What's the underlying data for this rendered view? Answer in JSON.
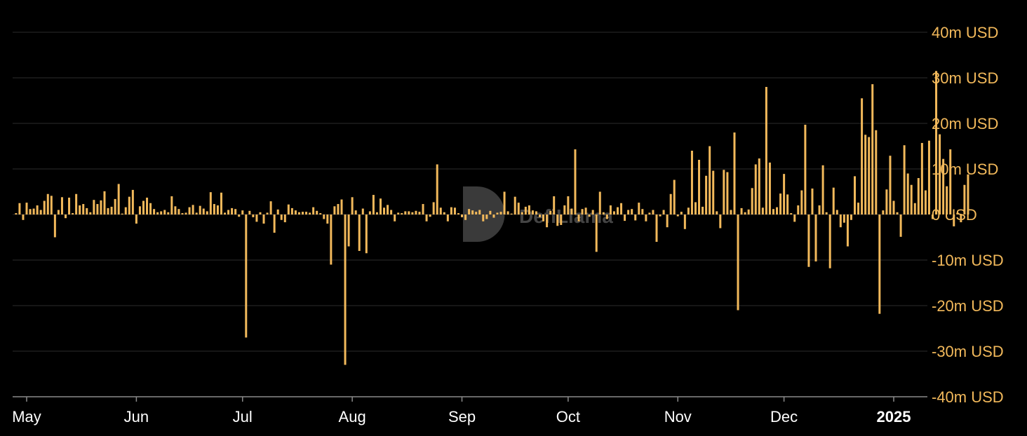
{
  "chart_data": {
    "type": "bar",
    "title": "",
    "xlabel": "",
    "ylabel": "",
    "unit": "USD",
    "ylim": [
      -40,
      40
    ],
    "grid": true,
    "bar_color": "#f2b95b",
    "background": "#000000",
    "watermark": "DefiLlama",
    "y_ticks": [
      "40m USD",
      "30m USD",
      "20m USD",
      "10m USD",
      "0 USD",
      "-10m USD",
      "-20m USD",
      "-30m USD",
      "-40m USD"
    ],
    "x_ticks": [
      {
        "label": "May",
        "date": "2024-05-01"
      },
      {
        "label": "Jun",
        "date": "2024-06-01"
      },
      {
        "label": "Jul",
        "date": "2024-07-01"
      },
      {
        "label": "Aug",
        "date": "2024-08-01"
      },
      {
        "label": "Sep",
        "date": "2024-09-01"
      },
      {
        "label": "Oct",
        "date": "2024-10-01"
      },
      {
        "label": "Nov",
        "date": "2024-11-01"
      },
      {
        "label": "Dec",
        "date": "2024-12-01"
      },
      {
        "label": "2025",
        "date": "2025-01-01",
        "bold": true
      }
    ],
    "start_date": "2024-04-28",
    "values": [
      0.3,
      2.5,
      -1.2,
      2.6,
      1.2,
      1.3,
      2.0,
      1.0,
      3.0,
      4.5,
      4.1,
      -5.0,
      1.0,
      3.8,
      -0.8,
      3.7,
      0.3,
      4.5,
      2.0,
      2.3,
      1.4,
      0.5,
      3.2,
      2.3,
      3.1,
      5.1,
      1.4,
      1.7,
      3.4,
      6.7,
      0.2,
      1.6,
      3.9,
      5.4,
      -2.0,
      1.8,
      3.0,
      3.7,
      2.5,
      1.2,
      0.5,
      0.7,
      1.0,
      0.5,
      4.0,
      1.8,
      1.2,
      0.3,
      0.4,
      1.6,
      2.1,
      0.4,
      1.9,
      1.3,
      0.7,
      4.9,
      2.3,
      2.0,
      4.8,
      0.4,
      1.0,
      1.4,
      1.2,
      -0.5,
      0.9,
      -27.0,
      0.8,
      -0.6,
      -1.6,
      0.5,
      -2.0,
      0.4,
      2.9,
      -4.0,
      1.1,
      -1.2,
      -1.7,
      2.2,
      1.4,
      0.9,
      0.5,
      0.6,
      0.6,
      0.4,
      1.6,
      0.8,
      0.3,
      -1.0,
      -2.0,
      -11.0,
      1.8,
      2.3,
      3.3,
      -33.0,
      -7.0,
      3.8,
      0.9,
      -8.0,
      1.3,
      -8.5,
      0.7,
      4.3,
      0.5,
      3.5,
      1.5,
      2.1,
      1.0,
      -1.5,
      0.4,
      0.3,
      0.7,
      0.7,
      0.5,
      0.8,
      0.6,
      2.3,
      -1.5,
      -0.5,
      2.7,
      11.0,
      1.5,
      0.5,
      -1.5,
      1.6,
      1.5,
      0.3,
      -0.6,
      -1.2,
      1.2,
      0.9,
      0.6,
      1.0,
      -1.5,
      -1.0,
      0.8,
      -0.7,
      0.4,
      0.6,
      5.0,
      0.7,
      0.2,
      3.9,
      2.6,
      0.5,
      1.7,
      2.0,
      0.9,
      0.7,
      -0.6,
      -1.5,
      -2.8,
      0.8,
      4.0,
      -2.5,
      -2.3,
      2.0,
      4.0,
      1.3,
      14.3,
      -1.5,
      1.2,
      1.5,
      -0.5,
      1.0,
      -8.2,
      5.0,
      0.5,
      -1.0,
      2.0,
      0.7,
      1.6,
      2.5,
      -1.4,
      1.0,
      1.2,
      -1.3,
      2.6,
      1.2,
      -1.5,
      0.4,
      1.0,
      -6.0,
      -0.4,
      1.0,
      -2.8,
      4.5,
      7.6,
      -0.4,
      0.6,
      -3.2,
      1.5,
      14.0,
      2.7,
      12.0,
      1.7,
      8.5,
      15.0,
      9.6,
      0.7,
      -3.0,
      9.8,
      9.3,
      1.0,
      18.0,
      -21.0,
      1.4,
      0.5,
      1.1,
      5.8,
      11.0,
      12.3,
      1.5,
      28.0,
      11.4,
      1.2,
      1.6,
      4.6,
      8.9,
      4.4,
      0.3,
      -1.6,
      2.0,
      5.3,
      19.7,
      -11.5,
      5.7,
      -10.3,
      2.0,
      10.8,
      0.5,
      -11.8,
      5.9,
      1.0,
      -2.8,
      -1.8,
      -7.0,
      -1.2,
      8.4,
      2.6,
      25.5,
      17.5,
      17.0,
      28.6,
      18.5,
      -21.8,
      0.9,
      5.5,
      12.9,
      3.0,
      0.5,
      -4.9,
      15.2,
      9.0,
      6.5,
      2.5,
      8.0,
      15.7,
      5.3,
      16.2,
      -1.0,
      31.5,
      17.6,
      12.2,
      6.2,
      14.3,
      -2.6,
      0.4,
      -1.7,
      6.5,
      8.8
    ]
  }
}
